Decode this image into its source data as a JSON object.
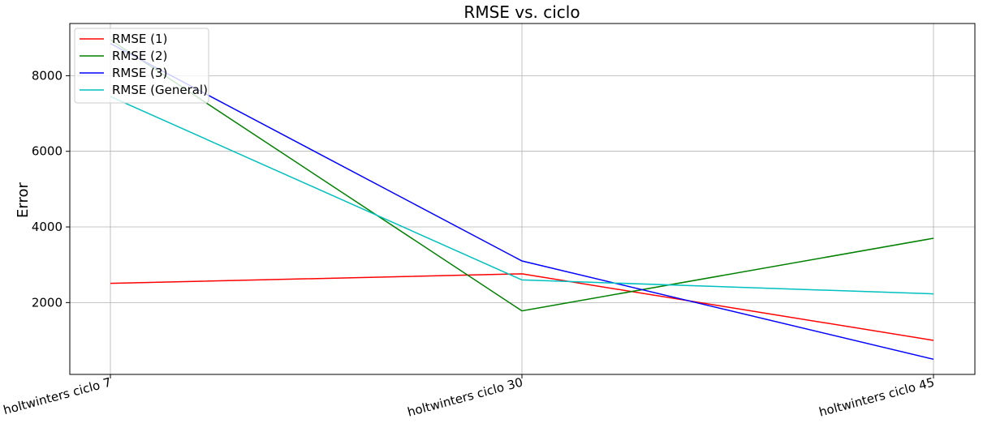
{
  "chart_data": {
    "type": "line",
    "title": "RMSE vs. ciclo",
    "xlabel": "",
    "ylabel": "Error",
    "categories": [
      "holtwinters ciclo 7",
      "holtwinters ciclo 30",
      "holtwinters ciclo 45"
    ],
    "yticks": [
      2000,
      4000,
      6000,
      8000
    ],
    "ylim": [
      100,
      9380
    ],
    "grid": true,
    "legend_position": "top-left",
    "series": [
      {
        "name": "RMSE (1)",
        "color": "#ff0000",
        "values": [
          2510,
          2760,
          1000
        ]
      },
      {
        "name": "RMSE (2)",
        "color": "#008000",
        "values": [
          8950,
          1780,
          3700
        ]
      },
      {
        "name": "RMSE (3)",
        "color": "#0000ff",
        "values": [
          8850,
          3100,
          500
        ]
      },
      {
        "name": "RMSE (General)",
        "color": "#00bfbf",
        "values": [
          7450,
          2600,
          2230
        ]
      }
    ]
  }
}
